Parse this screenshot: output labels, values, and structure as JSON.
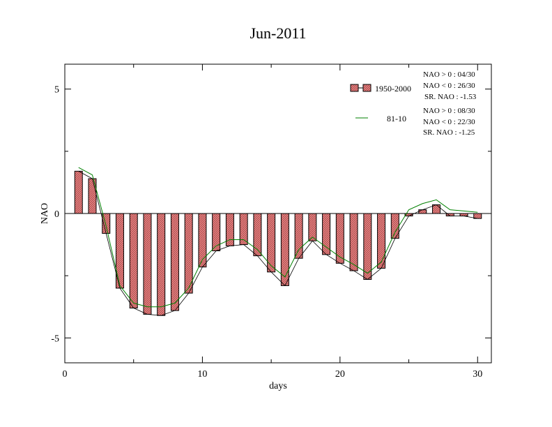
{
  "chart_data": {
    "type": "bar",
    "title": "Jun-2011",
    "xlabel": "days",
    "ylabel": "NAO",
    "xlim": [
      0,
      31
    ],
    "ylim": [
      -6,
      6
    ],
    "xticks": [
      0,
      10,
      20,
      30
    ],
    "yticks": [
      -5,
      0,
      5
    ],
    "grid": false,
    "legend_position": "top-right",
    "x": [
      1,
      2,
      3,
      4,
      5,
      6,
      7,
      8,
      9,
      10,
      11,
      12,
      13,
      14,
      15,
      16,
      17,
      18,
      19,
      20,
      21,
      22,
      23,
      24,
      25,
      26,
      27,
      28,
      29,
      30
    ],
    "series": [
      {
        "name": "1950-2000",
        "kind": "bar",
        "color": "#e88080",
        "values": [
          1.7,
          1.4,
          -0.8,
          -3.0,
          -3.8,
          -4.05,
          -4.1,
          -3.9,
          -3.2,
          -2.15,
          -1.5,
          -1.3,
          -1.25,
          -1.7,
          -2.35,
          -2.9,
          -1.8,
          -1.1,
          -1.65,
          -2.0,
          -2.3,
          -2.65,
          -2.2,
          -1.0,
          -0.1,
          0.15,
          0.35,
          -0.1,
          -0.1,
          -0.2
        ],
        "stats": [
          "NAO > 0 : 04/30",
          "NAO < 0 : 26/30",
          "SR. NAO : -1.53"
        ]
      },
      {
        "name": "81-10",
        "kind": "line",
        "color": "#008000",
        "values": [
          1.85,
          1.55,
          -0.5,
          -2.9,
          -3.6,
          -3.75,
          -3.75,
          -3.6,
          -3.0,
          -1.85,
          -1.3,
          -1.05,
          -1.05,
          -1.45,
          -2.1,
          -2.55,
          -1.45,
          -0.95,
          -1.35,
          -1.75,
          -2.05,
          -2.4,
          -1.95,
          -0.75,
          0.15,
          0.4,
          0.55,
          0.15,
          0.1,
          0.05
        ],
        "stats": [
          "NAO > 0 : 08/30",
          "NAO < 0 : 22/30",
          "SR. NAO : -1.25"
        ]
      }
    ],
    "black_line": [
      1.7,
      1.4,
      -0.8,
      -3.0,
      -3.8,
      -4.05,
      -4.1,
      -3.9,
      -3.2,
      -2.15,
      -1.5,
      -1.3,
      -1.25,
      -1.7,
      -2.35,
      -2.9,
      -1.8,
      -1.1,
      -1.65,
      -2.0,
      -2.3,
      -2.65,
      -2.2,
      -1.0,
      -0.1,
      0.15,
      0.35,
      -0.1,
      -0.1,
      -0.2
    ]
  }
}
